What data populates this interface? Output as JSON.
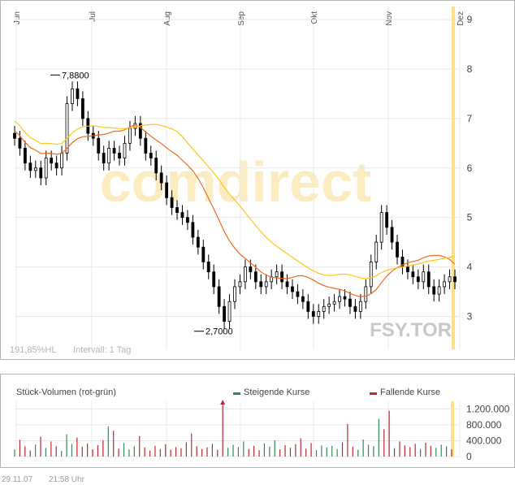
{
  "chart_data": [
    {
      "type": "candlestick",
      "symbol": "FSY.TOR",
      "watermark": "comdirect",
      "months": [
        "Jun",
        "Jul",
        "Aug",
        "Sep",
        "Okt",
        "Nov",
        "Dez"
      ],
      "ylim": [
        2.4,
        9.1
      ],
      "y_ticks": [
        "9",
        "8",
        "7",
        "6",
        "5",
        "4",
        "3"
      ],
      "y_tick_values": [
        9,
        8,
        7,
        6,
        5,
        4,
        3
      ],
      "annotations": [
        {
          "label": "7,8800",
          "value": 7.88
        },
        {
          "label": "2,7000",
          "value": 2.7
        }
      ],
      "bottom_left_info": [
        "191,85%HL",
        "Intervall: 1 Tag"
      ],
      "closes": [
        6.6,
        6.4,
        6.1,
        5.95,
        6.0,
        5.8,
        6.2,
        6.1,
        6.0,
        6.3,
        7.3,
        7.6,
        7.4,
        7.0,
        6.7,
        6.6,
        6.3,
        6.1,
        6.4,
        6.3,
        6.2,
        6.5,
        6.8,
        6.9,
        6.6,
        6.3,
        6.2,
        5.9,
        5.7,
        5.4,
        5.2,
        5.1,
        5.0,
        4.9,
        4.6,
        4.4,
        4.1,
        3.9,
        3.6,
        3.2,
        2.9,
        3.3,
        3.6,
        3.7,
        4.0,
        3.9,
        3.7,
        3.6,
        3.7,
        3.8,
        3.9,
        3.7,
        3.6,
        3.5,
        3.4,
        3.3,
        3.1,
        3.0,
        3.1,
        3.2,
        3.25,
        3.3,
        3.4,
        3.35,
        3.2,
        3.1,
        3.3,
        3.6,
        4.1,
        4.5,
        5.1,
        4.8,
        4.5,
        4.2,
        4.0,
        3.9,
        3.8,
        3.7,
        3.9,
        3.6,
        3.45,
        3.6,
        3.7,
        3.8,
        3.7
      ]
    },
    {
      "type": "bar",
      "title": "Stück-Volumen (rot-grün)",
      "legend": {
        "rising": "Steigende Kurse",
        "falling": "Fallende Kurse"
      },
      "y_ticks": [
        "1.200.000",
        "800.000",
        "400.000",
        "0"
      ],
      "y_tick_values": [
        1200000,
        800000,
        400000,
        0
      ],
      "ylim": [
        0,
        1350000
      ],
      "volumes": [
        180000,
        420000,
        260000,
        150000,
        300000,
        500000,
        220000,
        380000,
        260000,
        140000,
        560000,
        320000,
        480000,
        250000,
        330000,
        180000,
        290000,
        410000,
        760000,
        650000,
        200000,
        340000,
        180000,
        260000,
        510000,
        230000,
        150000,
        270000,
        190000,
        310000,
        170000,
        240000,
        210000,
        360000,
        580000,
        260000,
        190000,
        230000,
        320000,
        170000,
        1400000,
        220000,
        300000,
        240000,
        380000,
        190000,
        270000,
        160000,
        330000,
        250000,
        410000,
        180000,
        290000,
        220000,
        310000,
        460000,
        200000,
        340000,
        160000,
        280000,
        230000,
        270000,
        190000,
        360000,
        820000,
        250000,
        170000,
        430000,
        300000,
        260000,
        950000,
        690000,
        1150000,
        210000,
        380000,
        280000,
        240000,
        320000,
        190000,
        350000,
        270000,
        220000,
        300000,
        260000,
        180000
      ]
    }
  ],
  "footer": {
    "date": "29.11.07",
    "time": "21:58 Uhr"
  },
  "colors": {
    "rising": "#2e8b57",
    "falling": "#c0272d",
    "ma_short": "#f26c21",
    "ma_long": "#ffc61a",
    "highlight": "#ffe08a",
    "grid": "#e8e8e8",
    "axis_text": "#555555"
  }
}
